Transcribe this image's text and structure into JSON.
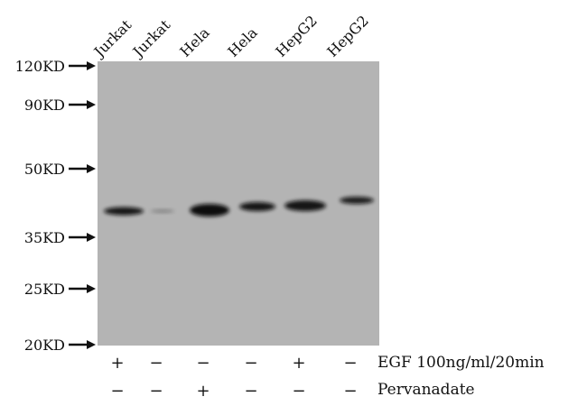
{
  "lanes": [
    {
      "label": "Jurkat",
      "egf": "+",
      "pervanadate": "−"
    },
    {
      "label": "Jurkat",
      "egf": "−",
      "pervanadate": "−"
    },
    {
      "label": "Hela",
      "egf": "−",
      "pervanadate": "+"
    },
    {
      "label": "Hela",
      "egf": "−",
      "pervanadate": "−"
    },
    {
      "label": "HepG2",
      "egf": "+",
      "pervanadate": "−"
    },
    {
      "label": "HepG2",
      "egf": "−",
      "pervanadate": "−"
    }
  ],
  "markers": [
    "120KD",
    "90KD",
    "50KD",
    "35KD",
    "25KD",
    "20KD"
  ],
  "conditions": {
    "egf": "EGF 100ng/ml/20min",
    "pervanadate": "Pervanadate"
  },
  "colors": {
    "membrane": "#b4b4b4",
    "band": "#111111"
  }
}
